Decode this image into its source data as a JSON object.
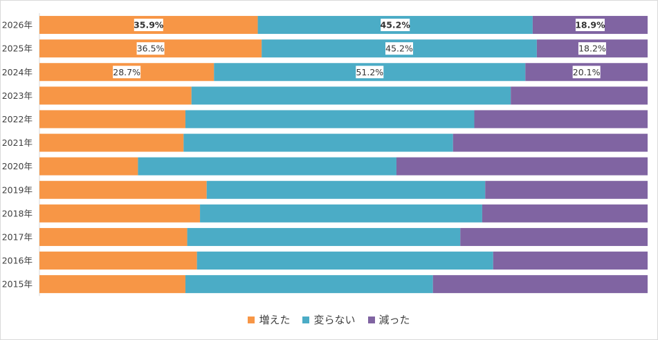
{
  "chart_data": {
    "type": "bar",
    "orientation": "horizontal",
    "stacked": "percent",
    "categories": [
      "2026年",
      "2025年",
      "2024年",
      "2023年",
      "2022年",
      "2021年",
      "2020年",
      "2019年",
      "2018年",
      "2017年",
      "2016年",
      "2015年"
    ],
    "series": [
      {
        "name": "増えた",
        "color": "#f79646",
        "values": [
          35.9,
          36.5,
          28.7,
          25.0,
          24.0,
          23.7,
          16.2,
          27.5,
          26.4,
          24.3,
          25.9,
          24.0
        ]
      },
      {
        "name": "変らない",
        "color": "#4bacc6",
        "values": [
          45.2,
          45.2,
          51.2,
          52.5,
          47.5,
          44.3,
          42.5,
          45.8,
          46.4,
          44.9,
          48.7,
          40.7
        ]
      },
      {
        "name": "減った",
        "color": "#8064a2",
        "values": [
          18.9,
          18.2,
          20.1,
          22.5,
          28.5,
          32.0,
          41.3,
          26.7,
          27.2,
          30.8,
          25.4,
          35.3
        ]
      }
    ],
    "data_labels": [
      {
        "category": "2026年",
        "texts": [
          "35.9%",
          "45.2%",
          "18.9%"
        ],
        "bold": true
      },
      {
        "category": "2025年",
        "texts": [
          "36.5%",
          "45.2%",
          "18.2%"
        ],
        "bold": false
      },
      {
        "category": "2024年",
        "texts": [
          "28.7%",
          "51.2%",
          "20.1%"
        ],
        "bold": false
      }
    ],
    "xlim": [
      0,
      100
    ],
    "legend_position": "bottom",
    "grid": false
  }
}
